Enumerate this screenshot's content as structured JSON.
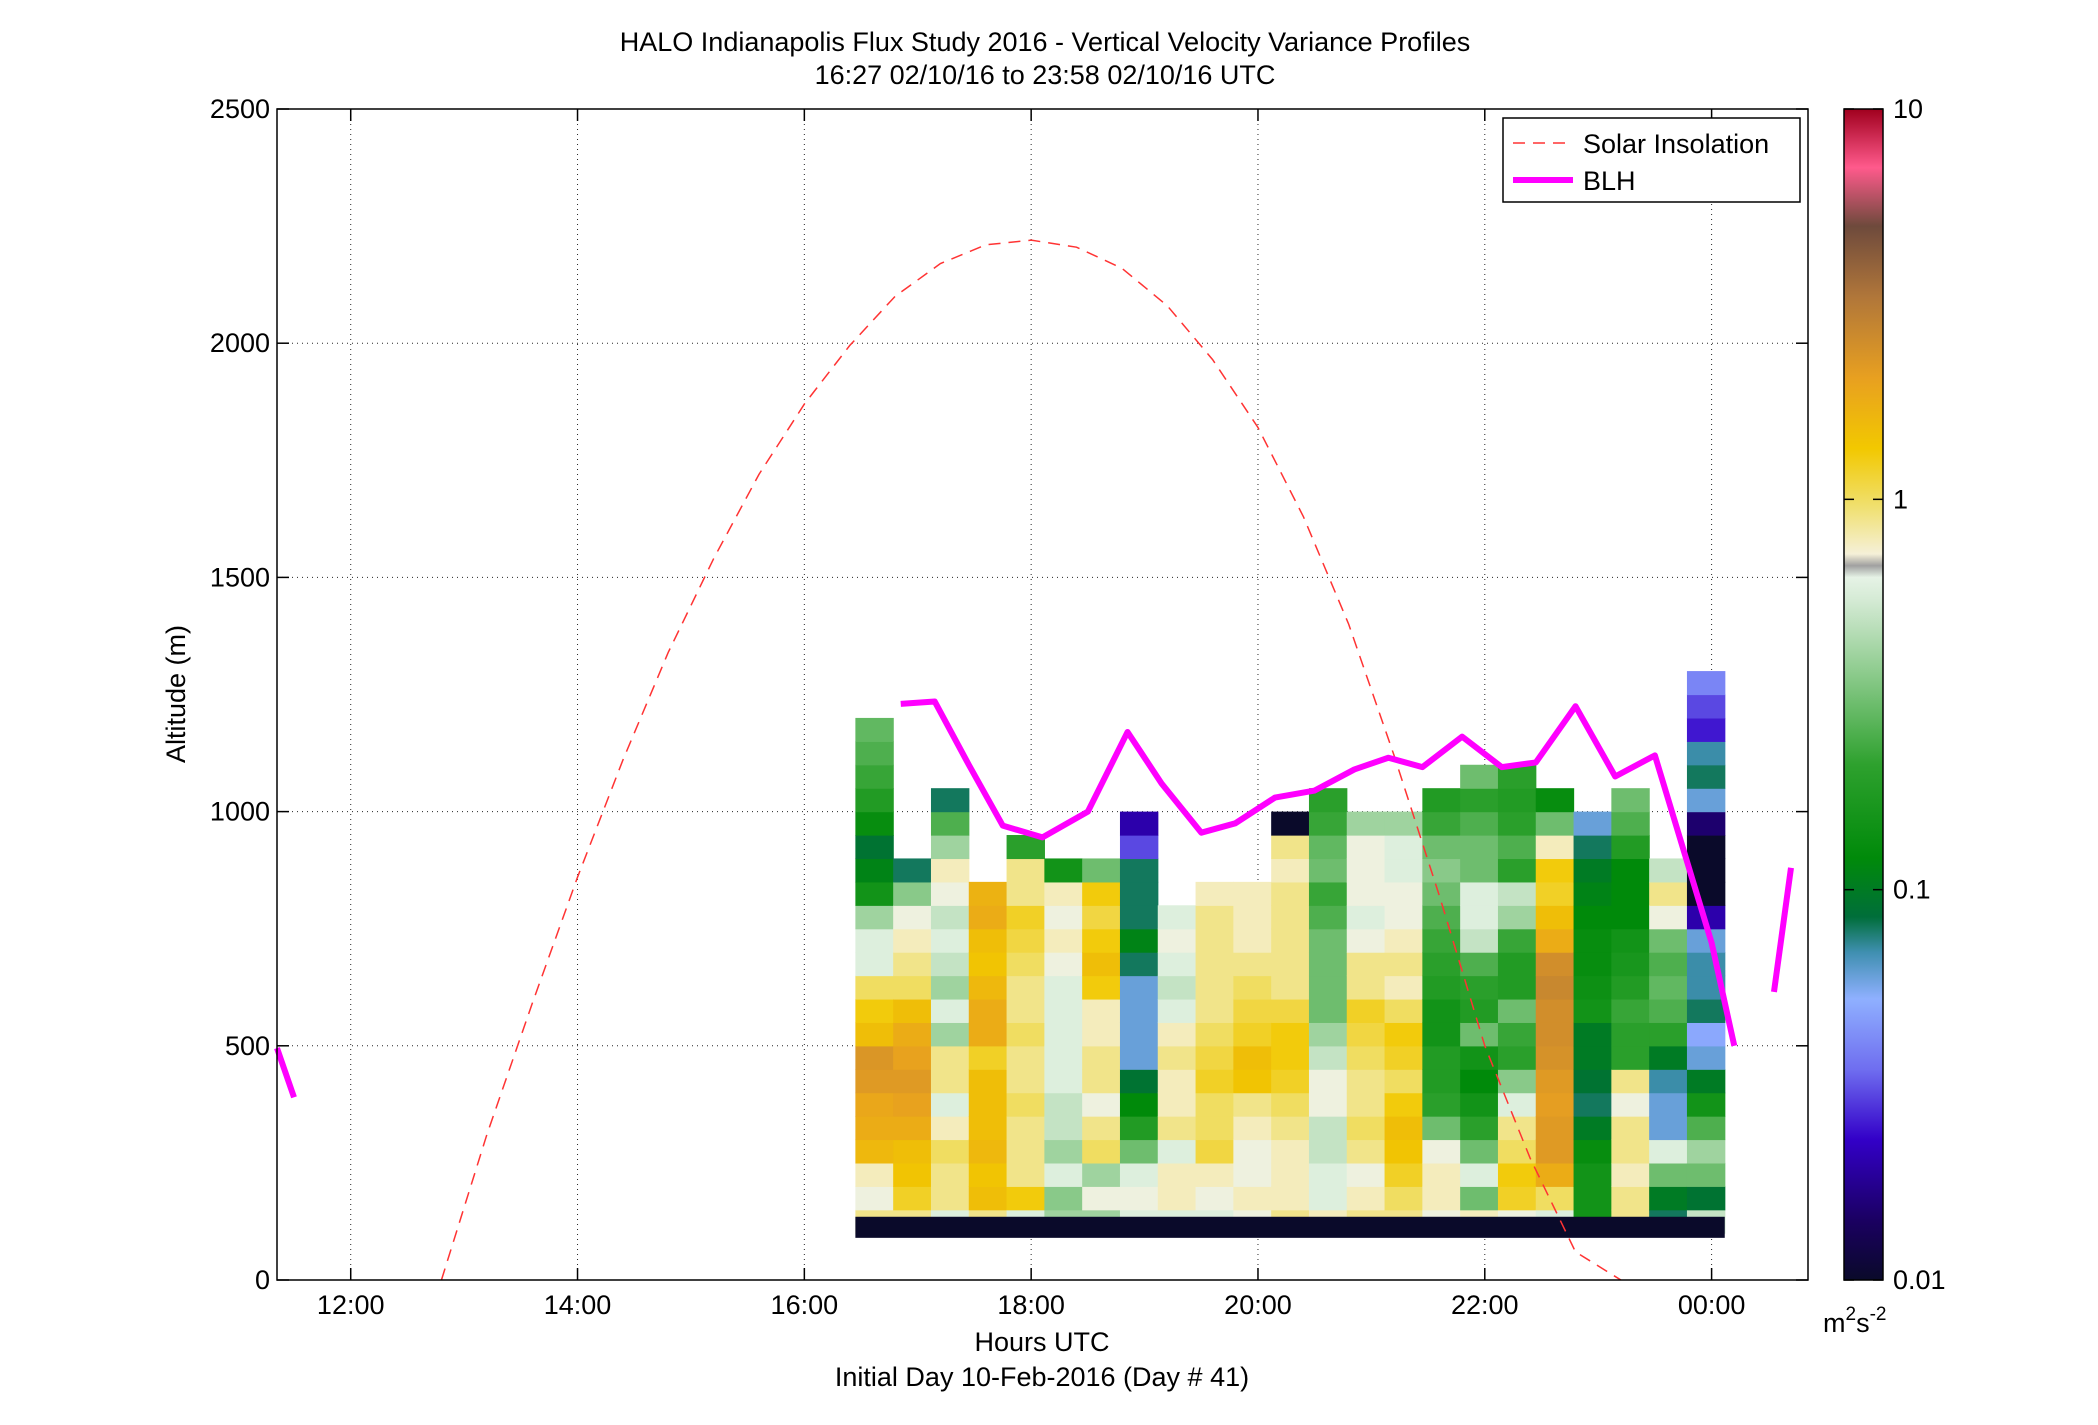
{
  "chart_data": {
    "type": "heatmap",
    "title": "HALO Indianapolis Flux Study 2016 - Vertical Velocity Variance Profiles",
    "subtitle": "16:27 02/10/16 to 23:58 02/10/16  UTC",
    "xlabel": "Hours UTC",
    "xlabel2": "Initial Day 10-Feb-2016 (Day # 41)",
    "ylabel": "Altitude (m)",
    "xlim": [
      11.35,
      24.85
    ],
    "ylim": [
      0,
      2500
    ],
    "x_ticks": [
      12,
      14,
      16,
      18,
      20,
      22,
      24
    ],
    "x_tick_labels": [
      "12:00",
      "14:00",
      "16:00",
      "18:00",
      "20:00",
      "22:00",
      "00:00"
    ],
    "y_ticks": [
      0,
      500,
      1000,
      1500,
      2000,
      2500
    ],
    "y_tick_labels": [
      "0",
      "500",
      "1000",
      "1500",
      "2000",
      "2500"
    ],
    "grid": true,
    "legend_position": "top-right",
    "colorbar": {
      "scale": "log",
      "range": [
        0.01,
        10
      ],
      "tick_values": [
        0.01,
        0.1,
        1,
        10
      ],
      "tick_labels": [
        "0.01",
        "0.1",
        "1",
        "10"
      ],
      "unit_base": "m",
      "unit_exp1": "2",
      "unit_mid": "s",
      "unit_exp2": "-2"
    },
    "heatmap": {
      "x_start": 16.45,
      "cell_width_hours": 0.3333,
      "altitude_base": 100,
      "cell_height_m": 50,
      "surface_band_altitude": [
        90,
        135
      ],
      "surface_band_value": 0.01,
      "columns_values": [
        [
          0.9,
          0.7,
          0.8,
          1.6,
          1.8,
          1.9,
          2.2,
          2.3,
          1.5,
          1.3,
          1.0,
          0.6,
          0.6,
          0.4,
          0.15,
          0.11,
          0.09,
          0.13,
          0.18,
          0.22,
          0.25,
          0.28
        ],
        [
          0.9,
          1.2,
          1.4,
          1.5,
          1.8,
          2.0,
          2.2,
          2.0,
          1.8,
          1.5,
          1.0,
          0.9,
          0.8,
          0.7,
          0.35,
          0.08
        ],
        [
          0.6,
          0.9,
          0.9,
          1.0,
          0.8,
          0.6,
          0.9,
          0.9,
          0.4,
          0.6,
          0.4,
          0.5,
          0.6,
          0.5,
          0.7,
          0.8,
          0.4,
          0.25,
          0.08
        ],
        [
          0.9,
          1.5,
          1.4,
          1.6,
          1.5,
          1.5,
          1.5,
          1.2,
          1.8,
          1.8,
          1.6,
          1.4,
          1.5,
          1.8,
          1.7
        ],
        [
          0.6,
          1.3,
          0.9,
          0.9,
          0.9,
          1.0,
          0.9,
          0.9,
          1.0,
          0.9,
          0.9,
          1.0,
          1.1,
          1.2,
          0.9,
          0.9,
          0.2
        ],
        [
          0.4,
          0.35,
          0.6,
          0.4,
          0.5,
          0.5,
          0.6,
          0.6,
          0.6,
          0.6,
          0.6,
          0.7,
          0.8,
          0.7,
          0.8,
          0.15
        ],
        [
          0.4,
          0.7,
          0.4,
          1.0,
          0.9,
          0.7,
          0.9,
          0.9,
          0.8,
          0.8,
          1.3,
          1.5,
          1.3,
          1.1,
          1.3,
          0.3
        ],
        [
          0.6,
          0.7,
          0.6,
          0.3,
          0.18,
          0.12,
          0.09,
          0.06,
          0.06,
          0.06,
          0.06,
          0.08,
          0.11,
          0.08,
          0.08,
          0.08,
          0.03,
          0.02
        ],
        [
          0.6,
          0.8,
          0.8,
          0.6,
          0.9,
          0.8,
          0.8,
          0.9,
          0.8,
          0.6,
          0.5,
          0.6,
          0.7,
          0.6
        ],
        [
          0.6,
          0.7,
          0.8,
          1.1,
          1.0,
          1.0,
          1.2,
          1.1,
          1.0,
          0.9,
          0.9,
          0.9,
          0.9,
          0.9,
          0.8
        ],
        [
          0.7,
          0.8,
          0.7,
          0.7,
          0.8,
          0.9,
          1.4,
          1.5,
          1.2,
          1.1,
          1.0,
          0.9,
          0.8,
          0.8,
          0.8
        ],
        [
          0.9,
          0.8,
          0.8,
          0.8,
          0.9,
          1.0,
          1.2,
          1.3,
          1.3,
          1.1,
          0.9,
          0.9,
          0.9,
          0.9,
          0.9,
          0.8,
          0.9,
          0.01
        ],
        [
          0.8,
          0.6,
          0.6,
          0.5,
          0.5,
          0.7,
          0.7,
          0.5,
          0.4,
          0.3,
          0.3,
          0.3,
          0.3,
          0.25,
          0.22,
          0.3,
          0.28,
          0.22,
          0.2
        ],
        [
          0.9,
          0.8,
          0.7,
          0.9,
          1.0,
          0.9,
          0.9,
          1.0,
          1.1,
          1.2,
          0.9,
          0.9,
          0.7,
          0.6,
          0.7,
          0.7,
          0.7,
          0.4
        ],
        [
          0.9,
          1.0,
          1.2,
          1.4,
          1.5,
          1.3,
          1.0,
          1.2,
          1.3,
          1.0,
          0.8,
          0.9,
          0.8,
          0.7,
          0.7,
          0.6,
          0.6,
          0.4
        ],
        [
          0.7,
          0.8,
          0.8,
          0.7,
          0.3,
          0.2,
          0.18,
          0.18,
          0.15,
          0.15,
          0.18,
          0.2,
          0.22,
          0.25,
          0.3,
          0.35,
          0.3,
          0.22,
          0.18
        ],
        [
          0.8,
          0.3,
          0.6,
          0.3,
          0.2,
          0.15,
          0.12,
          0.15,
          0.3,
          0.18,
          0.2,
          0.25,
          0.5,
          0.6,
          0.6,
          0.3,
          0.3,
          0.25,
          0.2,
          0.3
        ],
        [
          0.7,
          1.2,
          1.3,
          1.0,
          0.9,
          0.6,
          0.35,
          0.2,
          0.22,
          0.3,
          0.18,
          0.18,
          0.22,
          0.4,
          0.5,
          0.2,
          0.25,
          0.2,
          0.18,
          0.2
        ],
        [
          0.6,
          1.0,
          1.8,
          2.2,
          2.2,
          2.1,
          2.2,
          2.4,
          2.5,
          2.5,
          2.7,
          2.5,
          1.8,
          1.5,
          1.2,
          1.3,
          0.8,
          0.3,
          0.13
        ],
        [
          0.15,
          0.15,
          0.15,
          0.13,
          0.1,
          0.08,
          0.09,
          0.1,
          0.1,
          0.15,
          0.14,
          0.13,
          0.13,
          0.12,
          0.11,
          0.1,
          0.08,
          0.06
        ],
        [
          0.9,
          0.9,
          0.8,
          0.9,
          0.9,
          0.7,
          0.9,
          0.2,
          0.2,
          0.22,
          0.18,
          0.16,
          0.15,
          0.12,
          0.12,
          0.12,
          0.18,
          0.25,
          0.3
        ],
        [
          0.08,
          0.1,
          0.3,
          0.6,
          0.06,
          0.06,
          0.07,
          0.1,
          0.2,
          0.25,
          0.28,
          0.25,
          0.3,
          0.7,
          0.9,
          0.5
        ],
        [
          0.5,
          0.09,
          0.3,
          0.4,
          0.25,
          0.15,
          0.1,
          0.06,
          0.05,
          0.08,
          0.07,
          0.07,
          0.06,
          0.02,
          0.01,
          0.01,
          0.01,
          0.015,
          0.06,
          0.08,
          0.07,
          0.025,
          0.03,
          0.04
        ]
      ]
    },
    "series": [
      {
        "name": "Solar Insolation",
        "style": "dashed",
        "color": "#ff3333",
        "x": [
          12.8,
          13.2,
          13.6,
          14.0,
          14.4,
          14.8,
          15.2,
          15.6,
          16.0,
          16.4,
          16.8,
          17.2,
          17.6,
          18.0,
          18.4,
          18.8,
          19.2,
          19.6,
          20.0,
          20.4,
          20.8,
          21.2,
          21.6,
          22.0,
          22.4,
          22.8,
          23.2
        ],
        "y": [
          0,
          310,
          590,
          860,
          1110,
          1340,
          1540,
          1720,
          1870,
          1995,
          2100,
          2170,
          2210,
          2220,
          2205,
          2160,
          2080,
          1965,
          1820,
          1630,
          1400,
          1120,
          820,
          500,
          260,
          60,
          0
        ]
      },
      {
        "name": "BLH",
        "style": "solid",
        "color": "#ff00ff",
        "segments": [
          {
            "x": [
              11.35,
              11.5
            ],
            "y": [
              495,
              390
            ]
          },
          {
            "x": [
              16.85,
              17.15,
              17.45,
              17.75,
              18.1,
              18.5,
              18.85,
              19.15,
              19.5,
              19.8,
              20.15,
              20.5,
              20.85,
              21.15,
              21.45,
              21.8,
              22.15,
              22.45,
              22.8,
              23.15,
              23.5,
              24.0,
              24.2
            ],
            "y": [
              1230,
              1235,
              1100,
              970,
              945,
              1000,
              1170,
              1060,
              955,
              975,
              1030,
              1045,
              1090,
              1115,
              1095,
              1160,
              1095,
              1105,
              1225,
              1075,
              1120,
              720,
              500
            ]
          },
          {
            "x": [
              24.55,
              24.7
            ],
            "y": [
              615,
              880
            ]
          }
        ]
      }
    ]
  }
}
